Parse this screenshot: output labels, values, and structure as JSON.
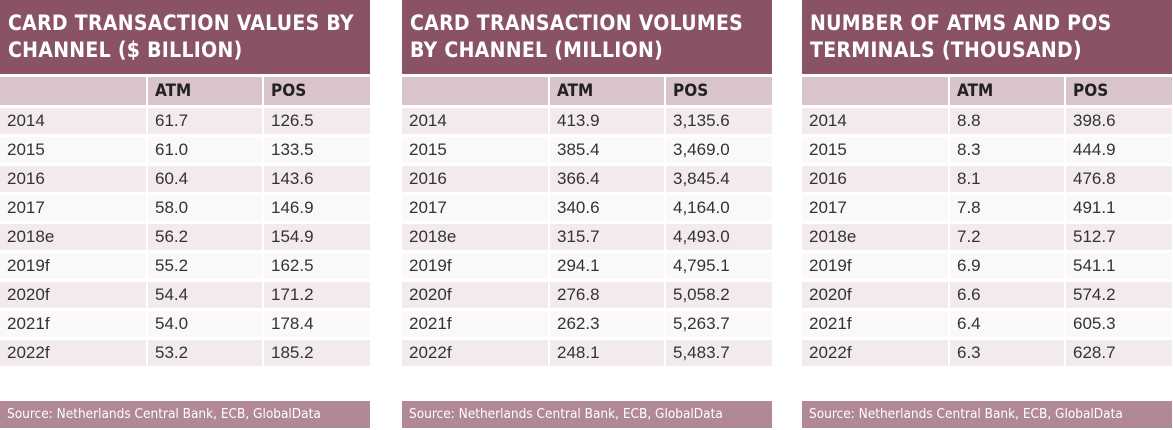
{
  "tables": [
    {
      "title": "CARD TRANSACTION VALUES BY CHANNEL ($ BILLION)",
      "headers": [
        "",
        "ATM",
        "POS"
      ],
      "rows": [
        [
          "2014",
          "61.7",
          "126.5"
        ],
        [
          "2015",
          "61.0",
          "133.5"
        ],
        [
          "2016",
          "60.4",
          "143.6"
        ],
        [
          "2017",
          "58.0",
          "146.9"
        ],
        [
          "2018e",
          "56.2",
          "154.9"
        ],
        [
          "2019f",
          "55.2",
          "162.5"
        ],
        [
          "2020f",
          "54.4",
          "171.2"
        ],
        [
          "2021f",
          "54.0",
          "178.4"
        ],
        [
          "2022f",
          "53.2",
          "185.2"
        ]
      ],
      "source": "Source: Netherlands Central Bank, ECB, GlobalData"
    },
    {
      "title": "CARD TRANSACTION VOLUMES BY CHANNEL (MILLION)",
      "headers": [
        "",
        "ATM",
        "POS"
      ],
      "rows": [
        [
          "2014",
          "413.9",
          "3,135.6"
        ],
        [
          "2015",
          "385.4",
          "3,469.0"
        ],
        [
          "2016",
          "366.4",
          "3,845.4"
        ],
        [
          "2017",
          "340.6",
          "4,164.0"
        ],
        [
          "2018e",
          "315.7",
          "4,493.0"
        ],
        [
          "2019f",
          "294.1",
          "4,795.1"
        ],
        [
          "2020f",
          "276.8",
          "5,058.2"
        ],
        [
          "2021f",
          "262.3",
          "5,263.7"
        ],
        [
          "2022f",
          "248.1",
          "5,483.7"
        ]
      ],
      "source": "Source: Netherlands Central Bank, ECB, GlobalData"
    },
    {
      "title": "NUMBER OF ATMS AND POS TERMINALS (THOUSAND)",
      "headers": [
        "",
        "ATM",
        "POS"
      ],
      "rows": [
        [
          "2014",
          "8.8",
          "398.6"
        ],
        [
          "2015",
          "8.3",
          "444.9"
        ],
        [
          "2016",
          "8.1",
          "476.8"
        ],
        [
          "2017",
          "7.8",
          "491.1"
        ],
        [
          "2018e",
          "7.2",
          "512.7"
        ],
        [
          "2019f",
          "6.9",
          "541.1"
        ],
        [
          "2020f",
          "6.6",
          "574.2"
        ],
        [
          "2021f",
          "6.4",
          "605.3"
        ],
        [
          "2022f",
          "6.3",
          "628.7"
        ]
      ],
      "source": "Source: Netherlands Central Bank, ECB, GlobalData"
    }
  ],
  "colors": {
    "header_band": "#8a5266",
    "column_header": "#d9c4cb",
    "row_odd": "#f2eaed",
    "row_even": "#fbf8f9",
    "source_band": "#b08897"
  }
}
